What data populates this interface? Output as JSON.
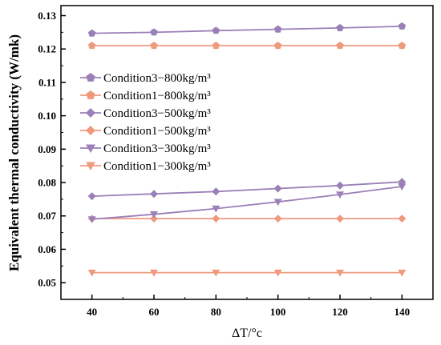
{
  "chart_data": {
    "type": "line",
    "xlabel": "ΔT/°c",
    "ylabel": "Equivalent thermal conductivity (W/mk)",
    "x": [
      40,
      60,
      80,
      100,
      120,
      140
    ],
    "xlim": [
      30,
      150
    ],
    "ylim": [
      0.045,
      0.133
    ],
    "xticks": [
      "40",
      "60",
      "80",
      "100",
      "120",
      "140"
    ],
    "yticks": [
      "0.05",
      "0.06",
      "0.07",
      "0.08",
      "0.09",
      "0.10",
      "0.11",
      "0.12",
      "0.13"
    ],
    "grid": false,
    "legend_position": "upper-left",
    "series": [
      {
        "name": "Condition3−800kg/m³",
        "color": "#9b80b8",
        "marker": "pentagon",
        "values": [
          0.1247,
          0.125,
          0.1255,
          0.1259,
          0.1263,
          0.1268
        ]
      },
      {
        "name": "Condition1−800kg/m³",
        "color": "#ef9a7e",
        "marker": "pentagon",
        "values": [
          0.121,
          0.121,
          0.121,
          0.121,
          0.121,
          0.121
        ]
      },
      {
        "name": "Condition3−500kg/m³",
        "color": "#9b80b8",
        "marker": "diamond",
        "values": [
          0.0759,
          0.0766,
          0.0773,
          0.0782,
          0.0791,
          0.0802
        ]
      },
      {
        "name": "Condition1−500kg/m³",
        "color": "#ef9a7e",
        "marker": "diamond",
        "values": [
          0.0692,
          0.0692,
          0.0692,
          0.0692,
          0.0692,
          0.0692
        ]
      },
      {
        "name": "Condition3−300kg/m³",
        "color": "#9b80b8",
        "marker": "triangle-down",
        "values": [
          0.069,
          0.0705,
          0.0722,
          0.0742,
          0.0764,
          0.0788
        ]
      },
      {
        "name": "Condition1−300kg/m³",
        "color": "#ef9a7e",
        "marker": "triangle-down",
        "values": [
          0.053,
          0.053,
          0.053,
          0.053,
          0.053,
          0.053
        ]
      }
    ]
  }
}
